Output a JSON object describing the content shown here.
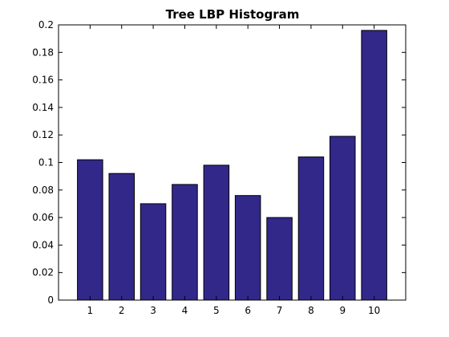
{
  "chart_data": {
    "type": "bar",
    "title": "Tree LBP Histogram",
    "xlabel": "",
    "ylabel": "",
    "categories": [
      "1",
      "2",
      "3",
      "4",
      "5",
      "6",
      "7",
      "8",
      "9",
      "10"
    ],
    "values": [
      0.102,
      0.092,
      0.07,
      0.084,
      0.098,
      0.076,
      0.06,
      0.104,
      0.119,
      0.196
    ],
    "xlim": [
      0,
      11
    ],
    "ylim": [
      0,
      0.2
    ],
    "yticks": [
      "0",
      "0.02",
      "0.04",
      "0.06",
      "0.08",
      "0.1",
      "0.12",
      "0.14",
      "0.16",
      "0.18",
      "0.2"
    ],
    "ytick_values": [
      0,
      0.02,
      0.04,
      0.06,
      0.08,
      0.1,
      0.12,
      0.14,
      0.16,
      0.18,
      0.2
    ],
    "grid": false,
    "colors": {
      "bar": "#32288a",
      "edge": "#000000"
    }
  }
}
